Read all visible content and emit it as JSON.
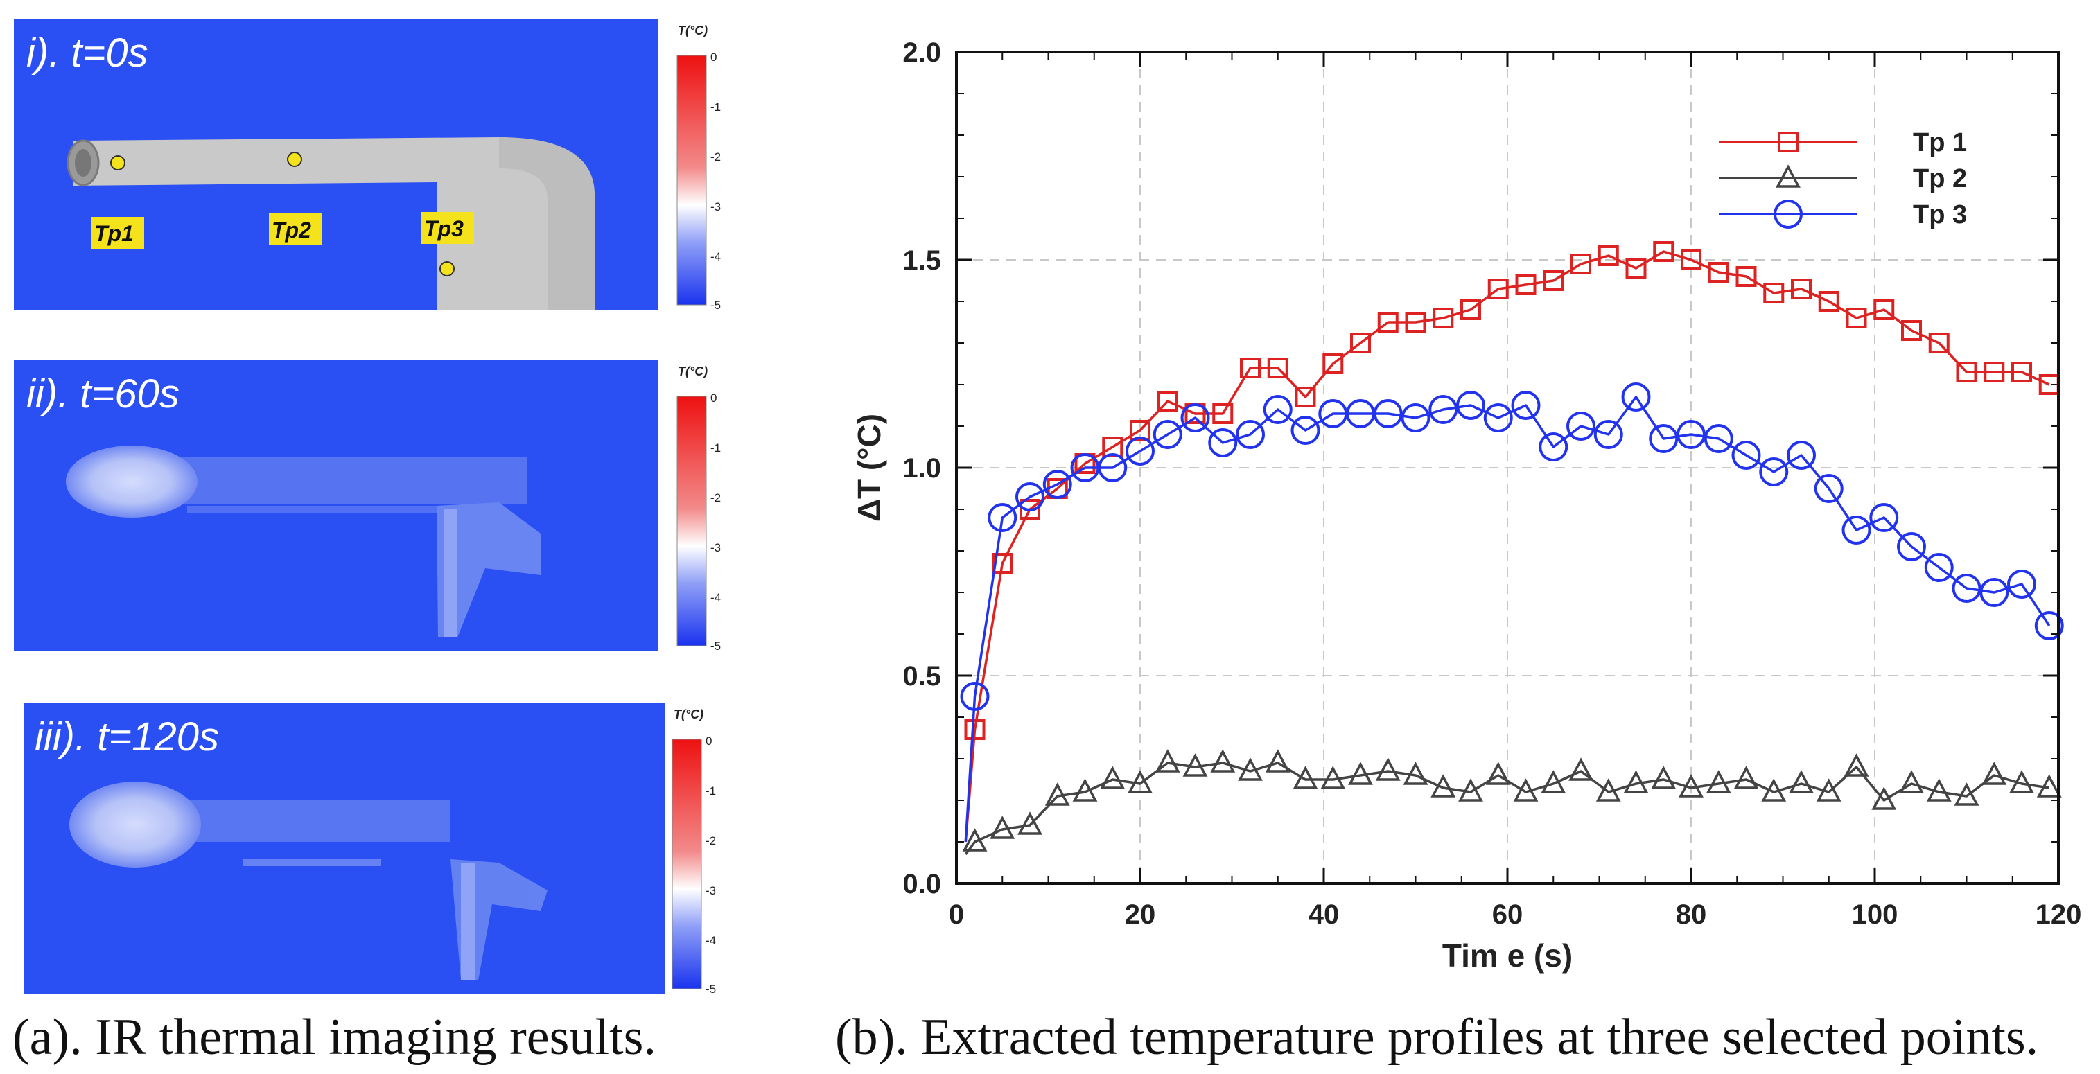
{
  "ir_panels": [
    {
      "label": "i). t=0s",
      "colorbar_title": "T(°C)",
      "colorbar_ticks": [
        "0",
        "-1",
        "-2",
        "-3",
        "-4",
        "-5"
      ],
      "points": [
        "Tp1",
        "Tp2",
        "Tp3"
      ]
    },
    {
      "label": "ii). t=60s",
      "colorbar_title": "T(°C)",
      "colorbar_ticks": [
        "0",
        "-1",
        "-2",
        "-3",
        "-4",
        "-5"
      ]
    },
    {
      "label": "iii). t=120s",
      "colorbar_title": "T(°C)",
      "colorbar_ticks": [
        "0",
        "-1",
        "-2",
        "-3",
        "-4",
        "-5"
      ]
    }
  ],
  "captions": {
    "a": "(a). IR thermal imaging results.",
    "b": "(b). Extracted temperature profiles at three selected points."
  },
  "colors": {
    "tp1": "#dd2222",
    "tp2": "#444444",
    "tp3": "#2233ee",
    "ir_bg": "#2a4ff2",
    "pipe": "#c9c9c9"
  },
  "chart_data": {
    "type": "line",
    "title": "",
    "xlabel": "Tim e (s)",
    "ylabel": "ΔT (°C)",
    "xlim": [
      0,
      120
    ],
    "ylim": [
      0,
      2.0
    ],
    "xticks": [
      0,
      20,
      40,
      60,
      80,
      100,
      120
    ],
    "xtick_labels": [
      "0",
      "20",
      "40",
      "60",
      "80",
      "100",
      "120"
    ],
    "yticks": [
      0,
      0.5,
      1.0,
      1.5,
      2.0
    ],
    "ytick_labels": [
      "0.0",
      "0.5",
      "1.0",
      "1.5",
      "2.0"
    ],
    "grid": true,
    "legend": "top-right",
    "series": [
      {
        "name": "Tp 1",
        "marker": "square",
        "color": "#dd2222",
        "x": [
          1,
          2,
          5,
          8,
          11,
          14,
          17,
          20,
          23,
          26,
          29,
          32,
          35,
          38,
          41,
          44,
          47,
          50,
          53,
          56,
          59,
          62,
          65,
          68,
          71,
          74,
          77,
          80,
          83,
          86,
          89,
          92,
          95,
          98,
          101,
          104,
          107,
          110,
          113,
          116,
          119
        ],
        "y": [
          0.1,
          0.37,
          0.77,
          0.9,
          0.95,
          1.01,
          1.05,
          1.09,
          1.16,
          1.13,
          1.13,
          1.24,
          1.24,
          1.17,
          1.25,
          1.3,
          1.35,
          1.35,
          1.36,
          1.38,
          1.43,
          1.44,
          1.45,
          1.49,
          1.51,
          1.48,
          1.52,
          1.5,
          1.47,
          1.46,
          1.42,
          1.43,
          1.4,
          1.36,
          1.38,
          1.33,
          1.3,
          1.23,
          1.23,
          1.23,
          1.2
        ]
      },
      {
        "name": "Tp 2",
        "marker": "triangle",
        "color": "#444444",
        "x": [
          1,
          2,
          5,
          8,
          11,
          14,
          17,
          20,
          23,
          26,
          29,
          32,
          35,
          38,
          41,
          44,
          47,
          50,
          53,
          56,
          59,
          62,
          65,
          68,
          71,
          74,
          77,
          80,
          83,
          86,
          89,
          92,
          95,
          98,
          101,
          104,
          107,
          110,
          113,
          116,
          119
        ],
        "y": [
          0.07,
          0.1,
          0.13,
          0.14,
          0.21,
          0.22,
          0.25,
          0.24,
          0.29,
          0.28,
          0.29,
          0.27,
          0.29,
          0.25,
          0.25,
          0.26,
          0.27,
          0.26,
          0.23,
          0.22,
          0.26,
          0.22,
          0.24,
          0.27,
          0.22,
          0.24,
          0.25,
          0.23,
          0.24,
          0.25,
          0.22,
          0.24,
          0.22,
          0.28,
          0.2,
          0.24,
          0.22,
          0.21,
          0.26,
          0.24,
          0.23
        ]
      },
      {
        "name": "Tp 3",
        "marker": "circle",
        "color": "#2233ee",
        "x": [
          1,
          2,
          5,
          8,
          11,
          14,
          17,
          20,
          23,
          26,
          29,
          32,
          35,
          38,
          41,
          44,
          47,
          50,
          53,
          56,
          59,
          62,
          65,
          68,
          71,
          74,
          77,
          80,
          83,
          86,
          89,
          92,
          95,
          98,
          101,
          104,
          107,
          110,
          113,
          116,
          119
        ],
        "y": [
          0.1,
          0.45,
          0.88,
          0.93,
          0.96,
          1.0,
          1.0,
          1.04,
          1.08,
          1.12,
          1.06,
          1.08,
          1.14,
          1.09,
          1.13,
          1.13,
          1.13,
          1.12,
          1.14,
          1.15,
          1.12,
          1.15,
          1.05,
          1.1,
          1.08,
          1.17,
          1.07,
          1.08,
          1.07,
          1.03,
          0.99,
          1.03,
          0.95,
          0.85,
          0.88,
          0.81,
          0.76,
          0.71,
          0.7,
          0.72,
          0.62
        ]
      }
    ]
  }
}
